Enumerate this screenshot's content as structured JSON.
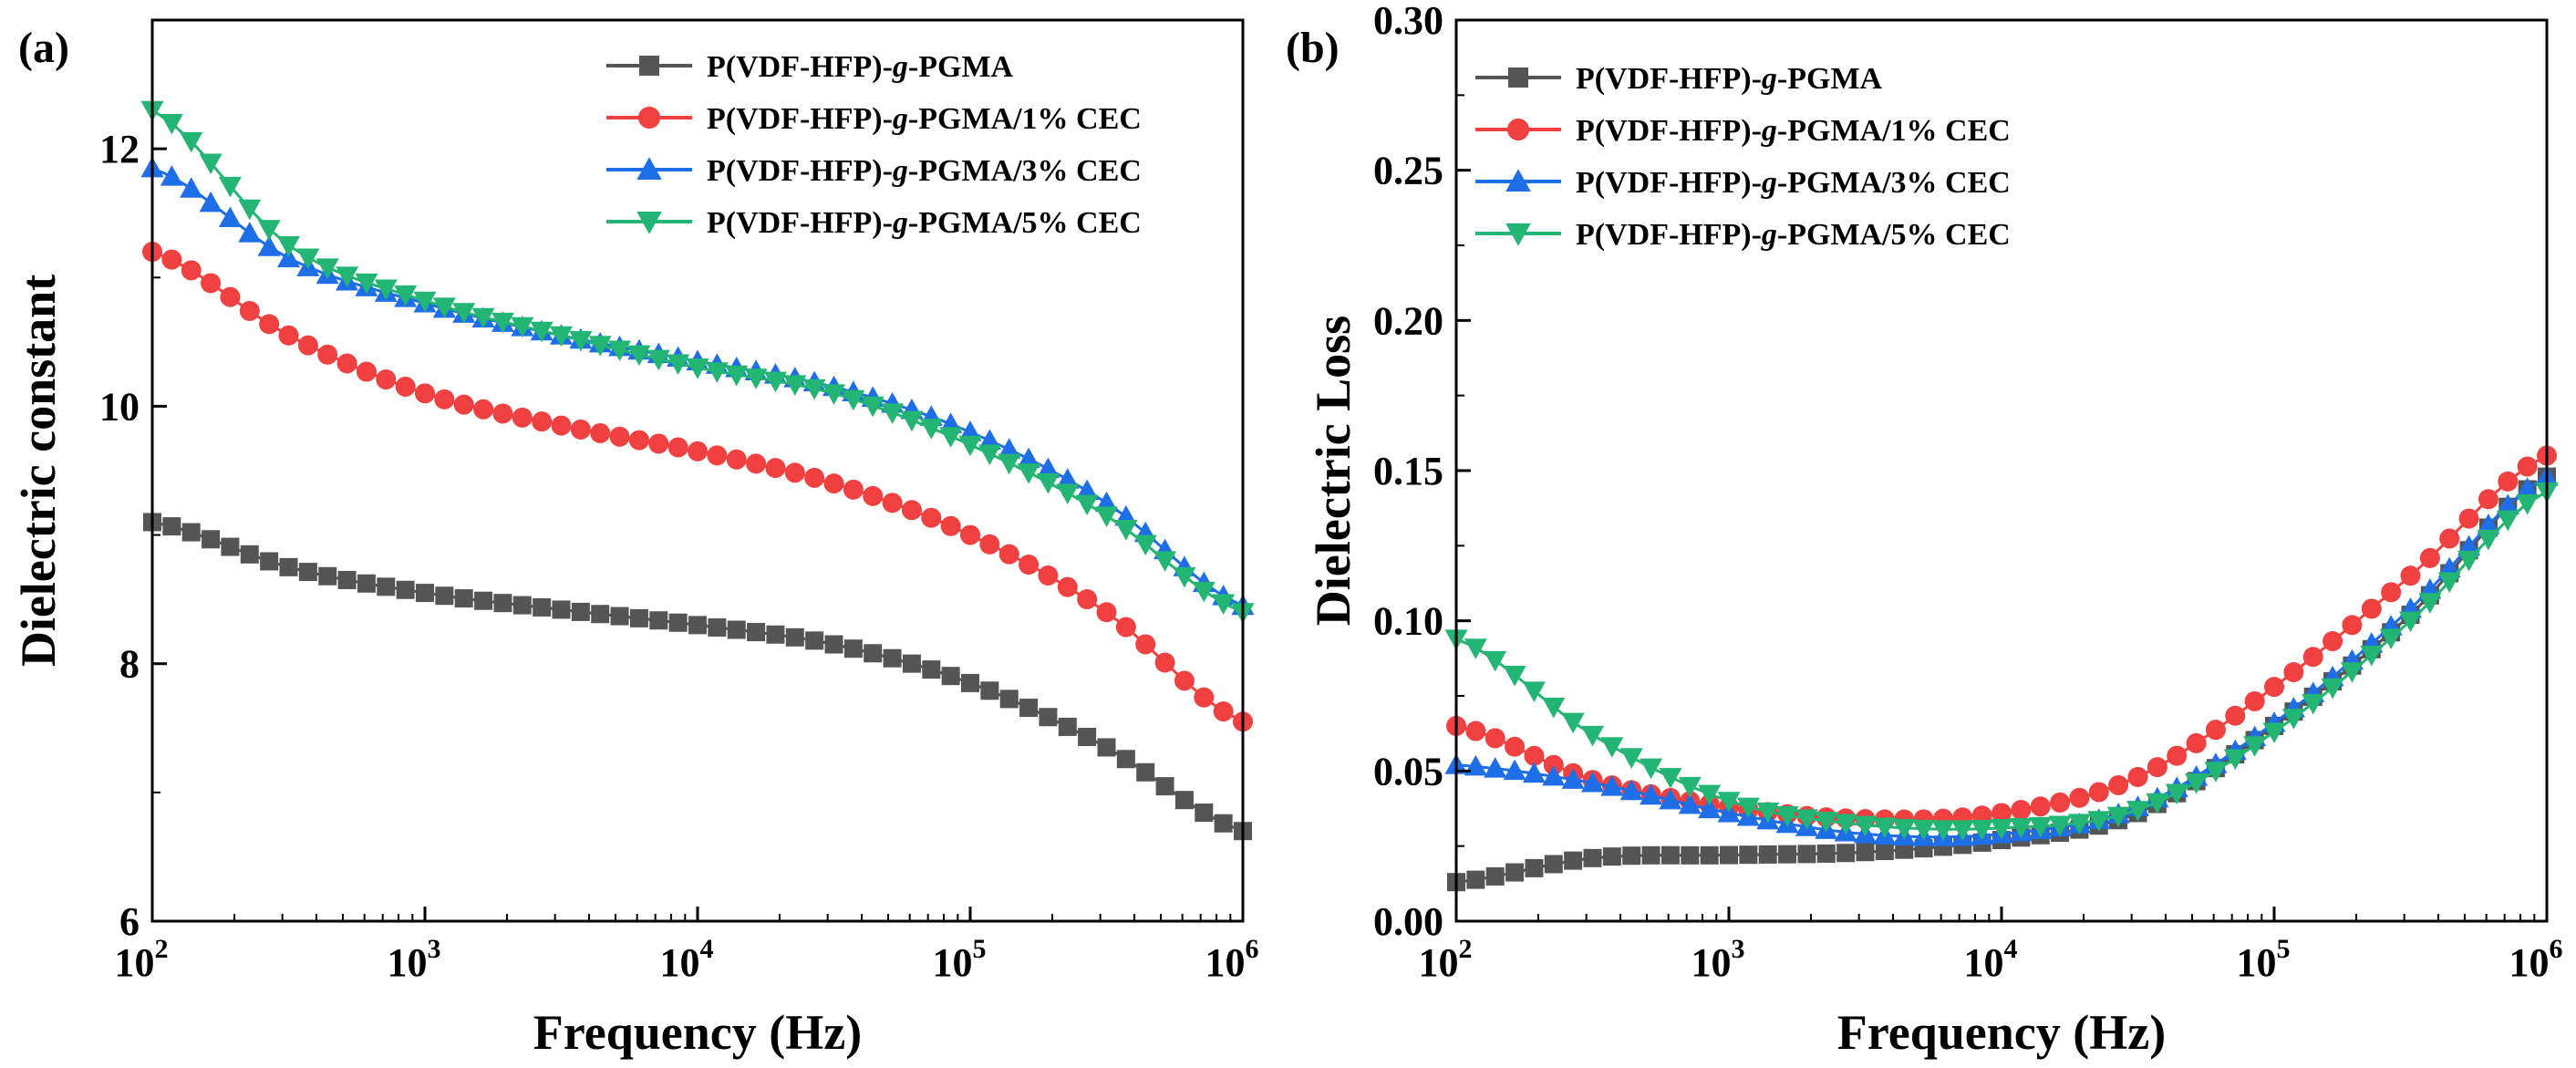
{
  "chart_data": [
    {
      "type": "line",
      "panel_label": "(a)",
      "xlabel": "Frequency (Hz)",
      "ylabel": "Dielectric constant",
      "xscale": "log",
      "xlim": [
        100,
        1000000
      ],
      "ylim": [
        6,
        13
      ],
      "xticks": [
        {
          "exp": "2",
          "base": "10",
          "value": 100
        },
        {
          "exp": "3",
          "base": "10",
          "value": 1000
        },
        {
          "exp": "4",
          "base": "10",
          "value": 10000
        },
        {
          "exp": "5",
          "base": "10",
          "value": 100000
        },
        {
          "exp": "6",
          "base": "10",
          "value": 1000000
        }
      ],
      "yticks": [
        {
          "label": "6",
          "value": 6
        },
        {
          "label": "8",
          "value": 8
        },
        {
          "label": "10",
          "value": 10
        },
        {
          "label": "12",
          "value": 12
        }
      ],
      "legend_position": "top-right",
      "logx_points": [
        2.0,
        2.5,
        3.0,
        3.5,
        4.0,
        4.5,
        5.0,
        5.5,
        6.0
      ],
      "series": [
        {
          "name": "P(VDF-HFP)-g-PGMA",
          "legend": [
            "P(VDF-HFP)-",
            "g",
            "-PGMA"
          ],
          "color": "#555555",
          "marker": "square",
          "values": [
            9.1,
            8.75,
            8.55,
            8.42,
            8.3,
            8.15,
            7.85,
            7.35,
            6.7
          ]
        },
        {
          "name": "P(VDF-HFP)-g-PGMA/1% CEC",
          "legend": [
            "P(VDF-HFP)-",
            "g",
            "-PGMA/1% CEC"
          ],
          "color": "#f04040",
          "marker": "circle",
          "values": [
            11.2,
            10.55,
            10.1,
            9.85,
            9.65,
            9.4,
            9.0,
            8.4,
            7.55
          ]
        },
        {
          "name": "P(VDF-HFP)-g-PGMA/3% CEC",
          "legend": [
            "P(VDF-HFP)-",
            "g",
            "-PGMA/3% CEC"
          ],
          "color": "#1e6ee8",
          "marker": "triangle-up",
          "values": [
            11.85,
            11.15,
            10.8,
            10.55,
            10.35,
            10.15,
            9.8,
            9.25,
            8.45
          ]
        },
        {
          "name": "P(VDF-HFP)-g-PGMA/5% CEC",
          "legend": [
            "P(VDF-HFP)-",
            "g",
            "-PGMA/5% CEC"
          ],
          "color": "#22b573",
          "marker": "triangle-down",
          "values": [
            12.3,
            11.25,
            10.82,
            10.55,
            10.3,
            10.1,
            9.7,
            9.15,
            8.4
          ]
        }
      ]
    },
    {
      "type": "line",
      "panel_label": "(b)",
      "xlabel": "Frequency (Hz)",
      "ylabel": "Dielectric Loss",
      "xscale": "log",
      "xlim": [
        100,
        1000000
      ],
      "ylim": [
        0,
        0.3
      ],
      "xticks": [
        {
          "exp": "2",
          "base": "10",
          "value": 100
        },
        {
          "exp": "3",
          "base": "10",
          "value": 1000
        },
        {
          "exp": "4",
          "base": "10",
          "value": 10000
        },
        {
          "exp": "5",
          "base": "10",
          "value": 100000
        },
        {
          "exp": "6",
          "base": "10",
          "value": 1000000
        }
      ],
      "yticks": [
        {
          "label": "0.00",
          "value": 0
        },
        {
          "label": "0.05",
          "value": 0.05
        },
        {
          "label": "0.10",
          "value": 0.1
        },
        {
          "label": "0.15",
          "value": 0.15
        },
        {
          "label": "0.20",
          "value": 0.2
        },
        {
          "label": "0.25",
          "value": 0.25
        },
        {
          "label": "0.30",
          "value": 0.3
        }
      ],
      "legend_position": "top-left",
      "logx_points": [
        2.0,
        2.5,
        3.0,
        3.5,
        4.0,
        4.5,
        5.0,
        5.5,
        6.0
      ],
      "series": [
        {
          "name": "P(VDF-HFP)-g-PGMA",
          "legend": [
            "P(VDF-HFP)-",
            "g",
            "-PGMA"
          ],
          "color": "#555555",
          "marker": "square",
          "values": [
            0.013,
            0.021,
            0.022,
            0.023,
            0.027,
            0.036,
            0.065,
            0.102,
            0.148
          ]
        },
        {
          "name": "P(VDF-HFP)-g-PGMA/1% CEC",
          "legend": [
            "P(VDF-HFP)-",
            "g",
            "-PGMA/1% CEC"
          ],
          "color": "#f04040",
          "marker": "circle",
          "values": [
            0.065,
            0.047,
            0.038,
            0.034,
            0.036,
            0.048,
            0.078,
            0.115,
            0.155
          ]
        },
        {
          "name": "P(VDF-HFP)-g-PGMA/3% CEC",
          "legend": [
            "P(VDF-HFP)-",
            "g",
            "-PGMA/3% CEC"
          ],
          "color": "#1e6ee8",
          "marker": "triangle-up",
          "values": [
            0.052,
            0.046,
            0.036,
            0.029,
            0.029,
            0.038,
            0.066,
            0.104,
            0.148
          ]
        },
        {
          "name": "P(VDF-HFP)-g-PGMA/5% CEC",
          "legend": [
            "P(VDF-HFP)-",
            "g",
            "-PGMA/5% CEC"
          ],
          "color": "#22b573",
          "marker": "triangle-down",
          "values": [
            0.094,
            0.062,
            0.04,
            0.032,
            0.031,
            0.037,
            0.063,
            0.1,
            0.143
          ]
        }
      ]
    }
  ]
}
